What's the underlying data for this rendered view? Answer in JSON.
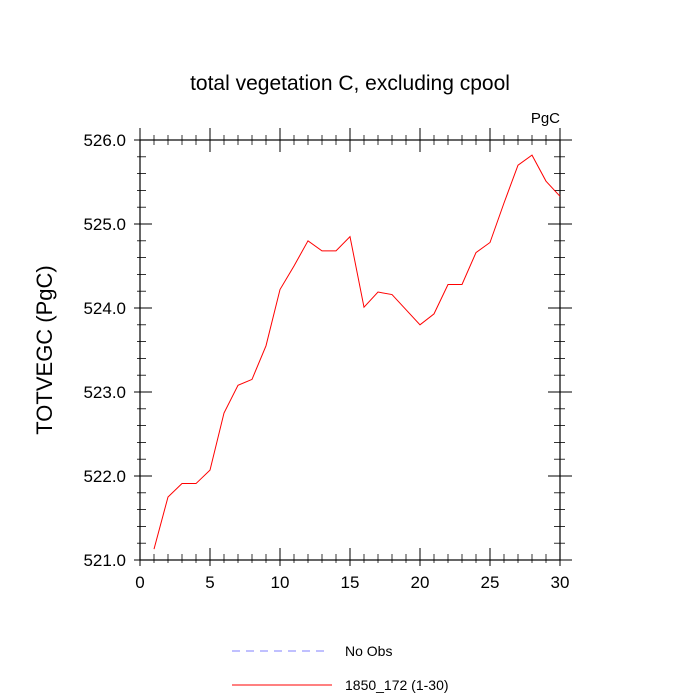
{
  "chart_data": {
    "type": "line",
    "title": "total vegetation C, excluding cpool",
    "units_label": "PgC",
    "xlabel": "",
    "ylabel": "TOTVEGC  (PgC)",
    "xlim": [
      0,
      30
    ],
    "ylim": [
      521.0,
      526.0
    ],
    "x_ticks": [
      0,
      5,
      10,
      15,
      20,
      25,
      30
    ],
    "x_tick_labels": [
      "0",
      "5",
      "10",
      "15",
      "20",
      "25",
      "30"
    ],
    "y_ticks": [
      521.0,
      522.0,
      523.0,
      524.0,
      525.0,
      526.0
    ],
    "y_tick_labels": [
      "521.0",
      "522.0",
      "523.0",
      "524.0",
      "525.0",
      "526.0"
    ],
    "grid": false,
    "legend_position": "bottom-center",
    "series": [
      {
        "name": "No Obs",
        "color": "#8080ff",
        "style": "dashed",
        "x": [],
        "values": []
      },
      {
        "name": "1850_172 (1-30)",
        "color": "#ff0000",
        "style": "solid",
        "x": [
          1,
          2,
          3,
          4,
          5,
          6,
          7,
          8,
          9,
          10,
          11,
          12,
          13,
          14,
          15,
          16,
          17,
          18,
          19,
          20,
          21,
          22,
          23,
          24,
          25,
          26,
          27,
          28,
          29,
          30
        ],
        "values": [
          521.13,
          521.75,
          521.91,
          521.91,
          522.07,
          522.75,
          523.08,
          523.15,
          523.55,
          524.22,
          524.5,
          524.8,
          524.68,
          524.68,
          524.85,
          524.01,
          524.19,
          524.16,
          523.98,
          523.8,
          523.93,
          524.28,
          524.28,
          524.66,
          524.78,
          525.25,
          525.7,
          525.82,
          525.51,
          525.33
        ]
      }
    ]
  }
}
